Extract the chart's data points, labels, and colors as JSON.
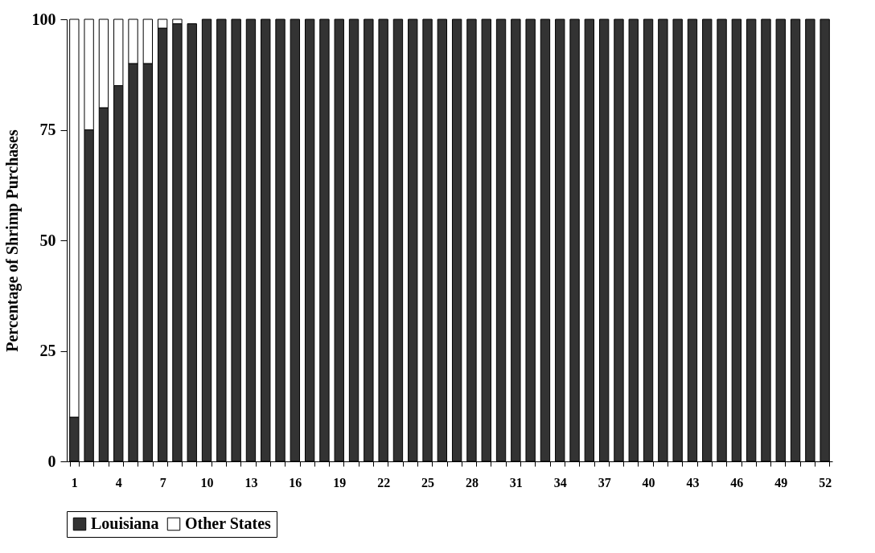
{
  "chart_data": {
    "type": "bar",
    "stacked": true,
    "ylabel": "Percentage of Shrimp Purchases",
    "categories": [
      "1",
      null,
      null,
      "4",
      null,
      null,
      "7",
      null,
      null,
      "10",
      null,
      null,
      "13",
      null,
      null,
      "16",
      null,
      null,
      "19",
      null,
      null,
      "22",
      null,
      null,
      "25",
      null,
      null,
      "28",
      null,
      null,
      "31",
      null,
      null,
      "34",
      null,
      null,
      "37",
      null,
      null,
      "40",
      null,
      null,
      "43",
      null,
      null,
      "46",
      null,
      null,
      "49",
      null,
      null,
      "52"
    ],
    "series": [
      {
        "name": "Louisiana",
        "color": "#333333",
        "values": [
          10,
          75,
          80,
          85,
          90,
          90,
          98,
          99,
          99,
          100,
          100,
          100,
          100,
          100,
          100,
          100,
          100,
          100,
          100,
          100,
          100,
          100,
          100,
          100,
          100,
          100,
          100,
          100,
          100,
          100,
          100,
          100,
          100,
          100,
          100,
          100,
          100,
          100,
          100,
          100,
          100,
          100,
          100,
          100,
          100,
          100,
          100,
          100,
          100,
          100,
          100,
          100
        ]
      },
      {
        "name": "Other States",
        "color": "#ffffff",
        "values": [
          90,
          25,
          20,
          15,
          10,
          10,
          2,
          1,
          null,
          null,
          null,
          null,
          null,
          null,
          null,
          null,
          null,
          null,
          null,
          null,
          null,
          null,
          null,
          null,
          null,
          null,
          null,
          null,
          null,
          null,
          null,
          null,
          null,
          null,
          null,
          null,
          null,
          null,
          null,
          null,
          null,
          null,
          null,
          null,
          null,
          null,
          null,
          null,
          null,
          null,
          null,
          null
        ]
      }
    ],
    "ylim": [
      0,
      100
    ],
    "yticks": [
      0,
      25,
      50,
      75,
      100
    ],
    "grid": false,
    "legend": "bottom"
  }
}
